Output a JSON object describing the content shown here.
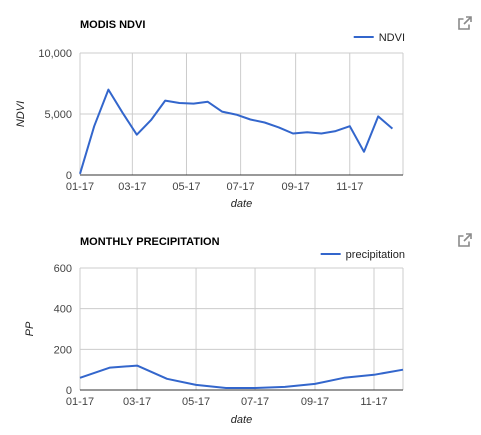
{
  "colors": {
    "series": "#3366cc",
    "grid": "#cccccc",
    "baseline": "#333333",
    "popout_icon": "#8a8a8a"
  },
  "popout_icon": "external-link-icon",
  "chart_data": [
    {
      "type": "line",
      "title": "MODIS NDVI",
      "xlabel": "date",
      "ylabel": "NDVI",
      "ylim": [
        0,
        10000
      ],
      "xlim": [
        "2017-01-01",
        "2017-12-31"
      ],
      "yticks": [
        0,
        5000,
        10000
      ],
      "ytick_labels": [
        "0",
        "5,000",
        "10,000"
      ],
      "xticks": [
        "2017-01-01",
        "2017-03-01",
        "2017-05-01",
        "2017-07-01",
        "2017-09-01",
        "2017-11-01"
      ],
      "xtick_labels": [
        "01-17",
        "03-17",
        "05-17",
        "07-17",
        "09-17",
        "11-17"
      ],
      "grid": true,
      "legend_position": "top-right",
      "series": [
        {
          "name": "NDVI",
          "x": [
            "2017-01-01",
            "2017-01-17",
            "2017-02-02",
            "2017-02-18",
            "2017-03-06",
            "2017-03-22",
            "2017-04-07",
            "2017-04-23",
            "2017-05-09",
            "2017-05-25",
            "2017-06-10",
            "2017-06-26",
            "2017-07-12",
            "2017-07-28",
            "2017-08-13",
            "2017-08-29",
            "2017-09-14",
            "2017-09-30",
            "2017-10-16",
            "2017-11-01",
            "2017-11-17",
            "2017-12-03",
            "2017-12-19"
          ],
          "values": [
            100,
            4000,
            7000,
            5100,
            3300,
            4500,
            6100,
            5900,
            5850,
            6000,
            5200,
            4950,
            4550,
            4300,
            3900,
            3400,
            3500,
            3400,
            3600,
            4000,
            1900,
            4800,
            3800
          ]
        }
      ]
    },
    {
      "type": "line",
      "title": "MONTHLY PRECIPITATION",
      "xlabel": "date",
      "ylabel": "PP",
      "ylim": [
        0,
        600
      ],
      "xlim": [
        "2017-01-01",
        "2017-12-01"
      ],
      "yticks": [
        0,
        200,
        400,
        600
      ],
      "ytick_labels": [
        "0",
        "200",
        "400",
        "600"
      ],
      "xticks": [
        "2017-01-01",
        "2017-03-01",
        "2017-05-01",
        "2017-07-01",
        "2017-09-01",
        "2017-11-01"
      ],
      "xtick_labels": [
        "01-17",
        "03-17",
        "05-17",
        "07-17",
        "09-17",
        "11-17"
      ],
      "grid": true,
      "legend_position": "top-right",
      "series": [
        {
          "name": "precipitation",
          "x": [
            "2017-01-01",
            "2017-02-01",
            "2017-03-01",
            "2017-04-01",
            "2017-05-01",
            "2017-06-01",
            "2017-07-01",
            "2017-08-01",
            "2017-09-01",
            "2017-10-01",
            "2017-11-01",
            "2017-12-01"
          ],
          "values": [
            60,
            110,
            120,
            55,
            25,
            10,
            10,
            15,
            30,
            60,
            75,
            100
          ]
        }
      ]
    }
  ]
}
